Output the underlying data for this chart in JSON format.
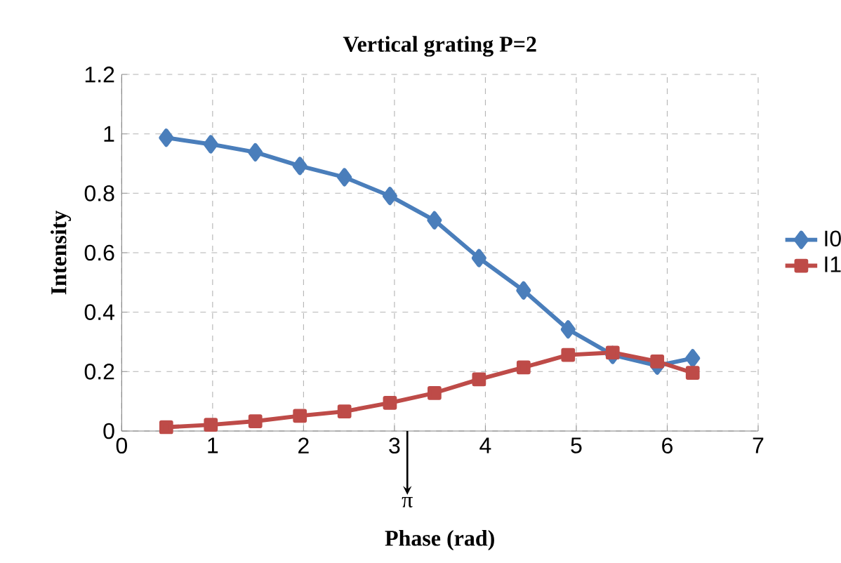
{
  "chart_data": {
    "type": "line",
    "title": "Vertical grating P=2",
    "xlabel": "Phase (rad)",
    "ylabel": "Intensity",
    "x": [
      0.49,
      0.98,
      1.47,
      1.96,
      2.45,
      2.95,
      3.44,
      3.93,
      4.42,
      4.91,
      5.4,
      5.89,
      6.28
    ],
    "series": [
      {
        "name": "I0",
        "color": "#4a7ebb",
        "marker": "diamond",
        "values": [
          0.987,
          0.965,
          0.938,
          0.892,
          0.854,
          0.791,
          0.709,
          0.582,
          0.473,
          0.342,
          0.256,
          0.22,
          0.245
        ]
      },
      {
        "name": "I1",
        "color": "#be4b48",
        "marker": "square",
        "values": [
          0.013,
          0.021,
          0.033,
          0.051,
          0.066,
          0.095,
          0.128,
          0.174,
          0.214,
          0.256,
          0.264,
          0.234,
          0.196
        ]
      }
    ],
    "xlim": [
      0,
      7
    ],
    "xticks": [
      0,
      1,
      2,
      3,
      4,
      5,
      6,
      7
    ],
    "ylim": [
      0,
      1.2
    ],
    "yticks": [
      0,
      0.2,
      0.4,
      0.6,
      0.8,
      1,
      1.2
    ],
    "grid": true,
    "legend": "right",
    "line_style": "solid",
    "ref_lines": [
      {
        "axis": "x",
        "value": 3.1416,
        "label": "π"
      }
    ]
  }
}
